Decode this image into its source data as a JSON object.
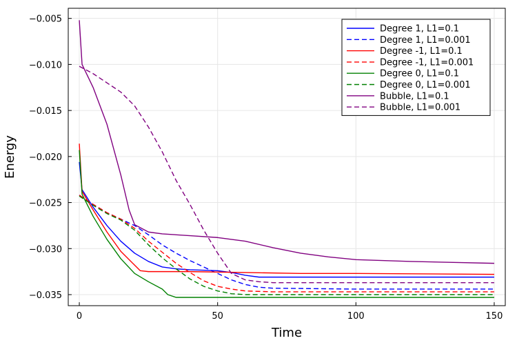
{
  "chart_data": {
    "type": "line",
    "title": "",
    "xlabel": "Time",
    "ylabel": "Energy",
    "xlim": [
      -4,
      154
    ],
    "ylim": [
      -0.0362,
      -0.0039
    ],
    "xticks": [
      0,
      50,
      100,
      150
    ],
    "xtick_labels": [
      "0",
      "50",
      "100",
      "150"
    ],
    "yticks": [
      -0.035,
      -0.03,
      -0.025,
      -0.02,
      -0.015,
      -0.01,
      -0.005
    ],
    "ytick_labels": [
      "−0.035",
      "−0.030",
      "−0.025",
      "−0.020",
      "−0.015",
      "−0.010",
      "−0.005"
    ],
    "grid": true,
    "legend_position": "top-right",
    "series": [
      {
        "name": "Degree 1, L1=0.1",
        "color": "#0000ff",
        "dash": "solid",
        "points": [
          [
            0,
            -0.0206
          ],
          [
            1,
            -0.0236
          ],
          [
            5,
            -0.0255
          ],
          [
            10,
            -0.0275
          ],
          [
            15,
            -0.0292
          ],
          [
            20,
            -0.0305
          ],
          [
            25,
            -0.0314
          ],
          [
            30,
            -0.032
          ],
          [
            35,
            -0.0322
          ],
          [
            40,
            -0.0323
          ],
          [
            50,
            -0.0324
          ],
          [
            55,
            -0.0326
          ],
          [
            60,
            -0.0329
          ],
          [
            65,
            -0.0331
          ],
          [
            70,
            -0.0331
          ],
          [
            100,
            -0.0331
          ],
          [
            150,
            -0.0331
          ]
        ]
      },
      {
        "name": "Degree 1, L1=0.001",
        "color": "#0000ff",
        "dash": "dashed",
        "points": [
          [
            0,
            -0.0242
          ],
          [
            5,
            -0.0252
          ],
          [
            10,
            -0.0261
          ],
          [
            15,
            -0.0268
          ],
          [
            20,
            -0.0275
          ],
          [
            25,
            -0.0285
          ],
          [
            30,
            -0.0296
          ],
          [
            35,
            -0.0305
          ],
          [
            40,
            -0.0313
          ],
          [
            45,
            -0.032
          ],
          [
            50,
            -0.0327
          ],
          [
            55,
            -0.0334
          ],
          [
            60,
            -0.0339
          ],
          [
            65,
            -0.0342
          ],
          [
            70,
            -0.0343
          ],
          [
            100,
            -0.0344
          ],
          [
            150,
            -0.0344
          ]
        ]
      },
      {
        "name": "Degree -1, L1=0.1",
        "color": "#ff0000",
        "dash": "solid",
        "points": [
          [
            0,
            -0.0186
          ],
          [
            1,
            -0.0238
          ],
          [
            5,
            -0.0258
          ],
          [
            10,
            -0.0282
          ],
          [
            15,
            -0.0303
          ],
          [
            20,
            -0.0318
          ],
          [
            22,
            -0.0324
          ],
          [
            25,
            -0.0325
          ],
          [
            40,
            -0.0325
          ],
          [
            60,
            -0.0326
          ],
          [
            80,
            -0.0327
          ],
          [
            100,
            -0.0327
          ],
          [
            150,
            -0.0328
          ]
        ]
      },
      {
        "name": "Degree -1, L1=0.001",
        "color": "#ff0000",
        "dash": "dashed",
        "points": [
          [
            0,
            -0.0242
          ],
          [
            5,
            -0.0252
          ],
          [
            10,
            -0.0261
          ],
          [
            15,
            -0.0268
          ],
          [
            20,
            -0.0278
          ],
          [
            25,
            -0.0292
          ],
          [
            30,
            -0.0304
          ],
          [
            35,
            -0.0316
          ],
          [
            40,
            -0.0326
          ],
          [
            45,
            -0.0335
          ],
          [
            50,
            -0.0341
          ],
          [
            55,
            -0.0344
          ],
          [
            60,
            -0.0346
          ],
          [
            70,
            -0.0347
          ],
          [
            100,
            -0.0347
          ],
          [
            150,
            -0.0347
          ]
        ]
      },
      {
        "name": "Degree 0, L1=0.1",
        "color": "#008000",
        "dash": "solid",
        "points": [
          [
            0,
            -0.0193
          ],
          [
            1,
            -0.0241
          ],
          [
            5,
            -0.0265
          ],
          [
            10,
            -0.029
          ],
          [
            15,
            -0.0311
          ],
          [
            20,
            -0.0327
          ],
          [
            25,
            -0.0336
          ],
          [
            30,
            -0.0344
          ],
          [
            32,
            -0.035
          ],
          [
            35,
            -0.0353
          ],
          [
            40,
            -0.0353
          ],
          [
            100,
            -0.0353
          ],
          [
            150,
            -0.0353
          ]
        ]
      },
      {
        "name": "Degree 0, L1=0.001",
        "color": "#008000",
        "dash": "dashed",
        "points": [
          [
            0,
            -0.0243
          ],
          [
            5,
            -0.0253
          ],
          [
            10,
            -0.0262
          ],
          [
            15,
            -0.0269
          ],
          [
            20,
            -0.028
          ],
          [
            25,
            -0.0296
          ],
          [
            30,
            -0.031
          ],
          [
            35,
            -0.0322
          ],
          [
            40,
            -0.0333
          ],
          [
            45,
            -0.0341
          ],
          [
            50,
            -0.0346
          ],
          [
            55,
            -0.0349
          ],
          [
            60,
            -0.035
          ],
          [
            70,
            -0.035
          ],
          [
            100,
            -0.035
          ],
          [
            150,
            -0.035
          ]
        ]
      },
      {
        "name": "Bubble, L1=0.1",
        "color": "#800080",
        "dash": "solid",
        "points": [
          [
            0,
            -0.0052
          ],
          [
            1,
            -0.01
          ],
          [
            5,
            -0.0125
          ],
          [
            10,
            -0.0165
          ],
          [
            15,
            -0.022
          ],
          [
            18,
            -0.0258
          ],
          [
            20,
            -0.0274
          ],
          [
            25,
            -0.0282
          ],
          [
            30,
            -0.0284
          ],
          [
            40,
            -0.0286
          ],
          [
            50,
            -0.0288
          ],
          [
            60,
            -0.0292
          ],
          [
            70,
            -0.0299
          ],
          [
            80,
            -0.0305
          ],
          [
            90,
            -0.0309
          ],
          [
            100,
            -0.0312
          ],
          [
            120,
            -0.0314
          ],
          [
            150,
            -0.0316
          ]
        ]
      },
      {
        "name": "Bubble, L1=0.001",
        "color": "#800080",
        "dash": "dashed",
        "points": [
          [
            0,
            -0.0102
          ],
          [
            5,
            -0.011
          ],
          [
            10,
            -0.012
          ],
          [
            15,
            -0.013
          ],
          [
            20,
            -0.0145
          ],
          [
            25,
            -0.0168
          ],
          [
            30,
            -0.0195
          ],
          [
            35,
            -0.0226
          ],
          [
            40,
            -0.0252
          ],
          [
            45,
            -0.028
          ],
          [
            50,
            -0.0305
          ],
          [
            55,
            -0.0327
          ],
          [
            60,
            -0.0334
          ],
          [
            65,
            -0.0336
          ],
          [
            70,
            -0.0337
          ],
          [
            100,
            -0.0337
          ],
          [
            150,
            -0.0337
          ]
        ]
      }
    ]
  }
}
